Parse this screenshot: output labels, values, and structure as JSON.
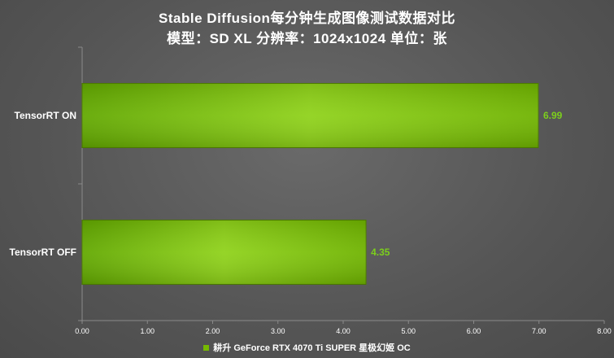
{
  "chart_data": {
    "type": "bar",
    "orientation": "horizontal",
    "title": "Stable Diffusion每分钟生成图像测试数据对比",
    "subtitle": "模型：SD XL  分辨率：1024x1024 单位：张",
    "categories": [
      "TensorRT ON",
      "TensorRT OFF"
    ],
    "series": [
      {
        "name": "耕升 GeForce RTX 4070 Ti SUPER 星极幻姬 OC",
        "values": [
          6.99,
          4.35
        ],
        "color": "#76b900"
      }
    ],
    "data_labels": [
      "6.99",
      "4.35"
    ],
    "xlim": [
      0,
      8
    ],
    "x_ticks": [
      "0.00",
      "1.00",
      "2.00",
      "3.00",
      "4.00",
      "5.00",
      "6.00",
      "7.00",
      "8.00"
    ],
    "grid": false,
    "legend_position": "bottom",
    "colors": {
      "bar": "#76b900",
      "bar_light": "#8fd21a",
      "label": "#7ccf1c",
      "background": "#5a5a5a"
    }
  }
}
